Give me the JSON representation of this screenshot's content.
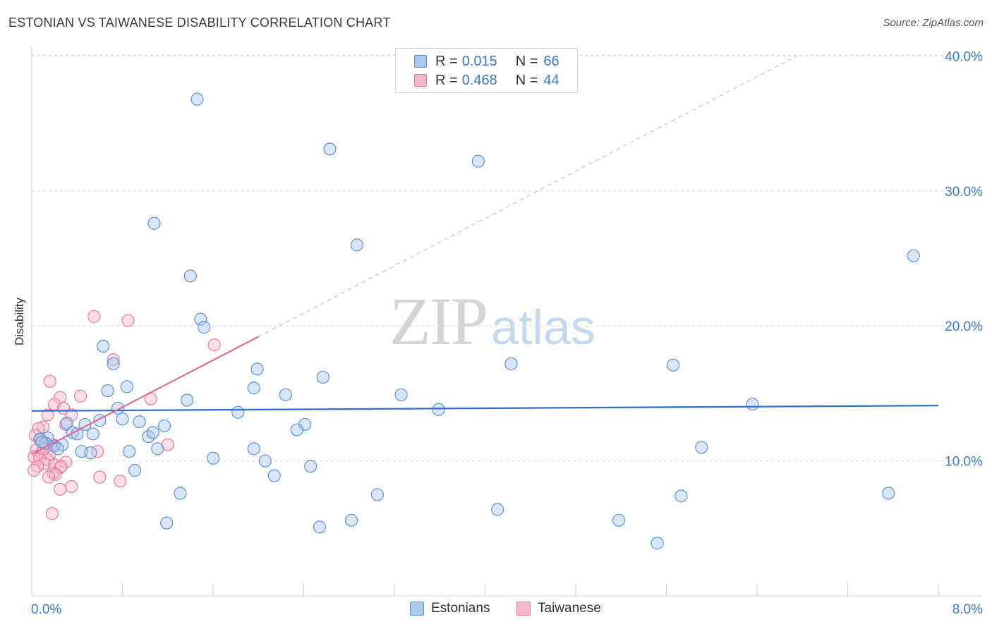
{
  "title": "ESTONIAN VS TAIWANESE DISABILITY CORRELATION CHART",
  "source": "Source: ZipAtlas.com",
  "watermark": {
    "part1": "ZIP",
    "part2": "atlas"
  },
  "legend": {
    "rows": [
      {
        "r_label": "R =",
        "r_value": "0.015",
        "n_label": "N =",
        "n_value": "66"
      },
      {
        "r_label": "R =",
        "r_value": "0.468",
        "n_label": "N =",
        "n_value": "44"
      }
    ]
  },
  "bottom_legend": {
    "estonians": "Estonians",
    "taiwanese": "Taiwanese"
  },
  "colors": {
    "estonian_fill": "#a9c8f0",
    "estonian_stroke": "#5b93d9",
    "estonian_line": "#2e6fce",
    "taiwanese_fill": "#f6b6cb",
    "taiwanese_stroke": "#e8799d",
    "taiwanese_line": "#e06a92",
    "grid": "#d9d9d9",
    "axis_text": "#3a78d4"
  },
  "chart_data": {
    "type": "scatter",
    "title": "ESTONIAN VS TAIWANESE DISABILITY CORRELATION CHART",
    "xlabel": "",
    "ylabel": "Disability",
    "xlim": [
      0,
      8
    ],
    "ylim": [
      0,
      41.5
    ],
    "x_tick_labels": [
      "0.0%",
      "8.0%"
    ],
    "y_ticks": [
      10,
      20,
      30,
      40
    ],
    "y_tick_labels": [
      "10.0%",
      "20.0%",
      "30.0%",
      "40.0%"
    ],
    "grid": true,
    "legend_position": "top-center",
    "series": [
      {
        "name": "Estonians",
        "R": 0.015,
        "N": 66,
        "trend": {
          "x": [
            0.0,
            8.0
          ],
          "y": [
            13.7,
            14.1
          ],
          "style": "solid"
        },
        "points": [
          [
            1.46,
            36.8
          ],
          [
            2.63,
            33.1
          ],
          [
            3.94,
            32.2
          ],
          [
            1.08,
            27.6
          ],
          [
            2.87,
            26.0
          ],
          [
            7.78,
            25.2
          ],
          [
            1.4,
            23.7
          ],
          [
            1.49,
            20.5
          ],
          [
            1.52,
            19.9
          ],
          [
            0.63,
            18.5
          ],
          [
            0.72,
            17.2
          ],
          [
            4.23,
            17.2
          ],
          [
            5.66,
            17.1
          ],
          [
            1.99,
            16.8
          ],
          [
            2.57,
            16.2
          ],
          [
            0.84,
            15.5
          ],
          [
            0.67,
            15.2
          ],
          [
            1.96,
            15.4
          ],
          [
            2.24,
            14.9
          ],
          [
            3.26,
            14.9
          ],
          [
            1.37,
            14.5
          ],
          [
            0.76,
            13.9
          ],
          [
            3.59,
            13.8
          ],
          [
            6.36,
            14.2
          ],
          [
            1.82,
            13.6
          ],
          [
            0.8,
            13.1
          ],
          [
            0.6,
            13.0
          ],
          [
            0.95,
            12.9
          ],
          [
            0.31,
            12.8
          ],
          [
            0.47,
            12.7
          ],
          [
            1.17,
            12.6
          ],
          [
            2.41,
            12.7
          ],
          [
            2.34,
            12.3
          ],
          [
            0.36,
            12.1
          ],
          [
            0.4,
            12.0
          ],
          [
            0.54,
            12.0
          ],
          [
            1.03,
            11.8
          ],
          [
            1.07,
            12.1
          ],
          [
            0.14,
            11.7
          ],
          [
            0.07,
            11.6
          ],
          [
            0.12,
            11.3
          ],
          [
            0.2,
            11.1
          ],
          [
            0.27,
            11.2
          ],
          [
            0.23,
            10.9
          ],
          [
            0.44,
            10.7
          ],
          [
            0.52,
            10.6
          ],
          [
            0.86,
            10.7
          ],
          [
            1.11,
            10.9
          ],
          [
            1.96,
            10.9
          ],
          [
            5.91,
            11.0
          ],
          [
            1.6,
            10.2
          ],
          [
            2.06,
            10.0
          ],
          [
            2.46,
            9.6
          ],
          [
            0.91,
            9.3
          ],
          [
            2.14,
            8.9
          ],
          [
            1.31,
            7.6
          ],
          [
            3.05,
            7.5
          ],
          [
            5.73,
            7.4
          ],
          [
            7.56,
            7.6
          ],
          [
            4.11,
            6.4
          ],
          [
            1.19,
            5.4
          ],
          [
            2.54,
            5.1
          ],
          [
            2.82,
            5.6
          ],
          [
            5.18,
            5.6
          ],
          [
            5.52,
            3.9
          ],
          [
            0.09,
            11.4
          ]
        ]
      },
      {
        "name": "Taiwanese",
        "R": 0.468,
        "N": 44,
        "trend": {
          "x": [
            0.0,
            2.0
          ],
          "y": [
            10.5,
            19.2
          ],
          "style": "solid",
          "extended": {
            "x": [
              2.0,
              6.75
            ],
            "y": [
              19.2,
              40.0
            ],
            "style": "dashed"
          }
        },
        "points": [
          [
            0.55,
            20.7
          ],
          [
            0.85,
            20.4
          ],
          [
            1.61,
            18.6
          ],
          [
            0.72,
            17.5
          ],
          [
            0.16,
            15.9
          ],
          [
            0.25,
            14.7
          ],
          [
            0.43,
            14.8
          ],
          [
            1.05,
            14.6
          ],
          [
            0.2,
            14.2
          ],
          [
            0.28,
            13.9
          ],
          [
            0.14,
            13.4
          ],
          [
            0.35,
            13.4
          ],
          [
            0.3,
            12.7
          ],
          [
            0.1,
            12.5
          ],
          [
            0.06,
            12.4
          ],
          [
            0.03,
            11.9
          ],
          [
            0.08,
            11.6
          ],
          [
            0.13,
            11.3
          ],
          [
            0.19,
            11.2
          ],
          [
            0.12,
            11.0
          ],
          [
            1.2,
            11.2
          ],
          [
            0.04,
            10.8
          ],
          [
            0.09,
            10.6
          ],
          [
            0.16,
            10.5
          ],
          [
            0.58,
            10.7
          ],
          [
            0.02,
            10.3
          ],
          [
            0.07,
            10.2
          ],
          [
            0.14,
            10.1
          ],
          [
            0.3,
            9.9
          ],
          [
            0.11,
            9.8
          ],
          [
            0.2,
            9.7
          ],
          [
            0.25,
            9.5
          ],
          [
            0.05,
            9.6
          ],
          [
            0.26,
            9.6
          ],
          [
            0.02,
            9.3
          ],
          [
            0.19,
            9.1
          ],
          [
            0.21,
            9.0
          ],
          [
            0.15,
            8.8
          ],
          [
            0.6,
            8.8
          ],
          [
            0.35,
            8.1
          ],
          [
            0.78,
            8.5
          ],
          [
            0.25,
            7.9
          ],
          [
            0.18,
            6.1
          ],
          [
            0.1,
            10.9
          ]
        ]
      }
    ]
  }
}
